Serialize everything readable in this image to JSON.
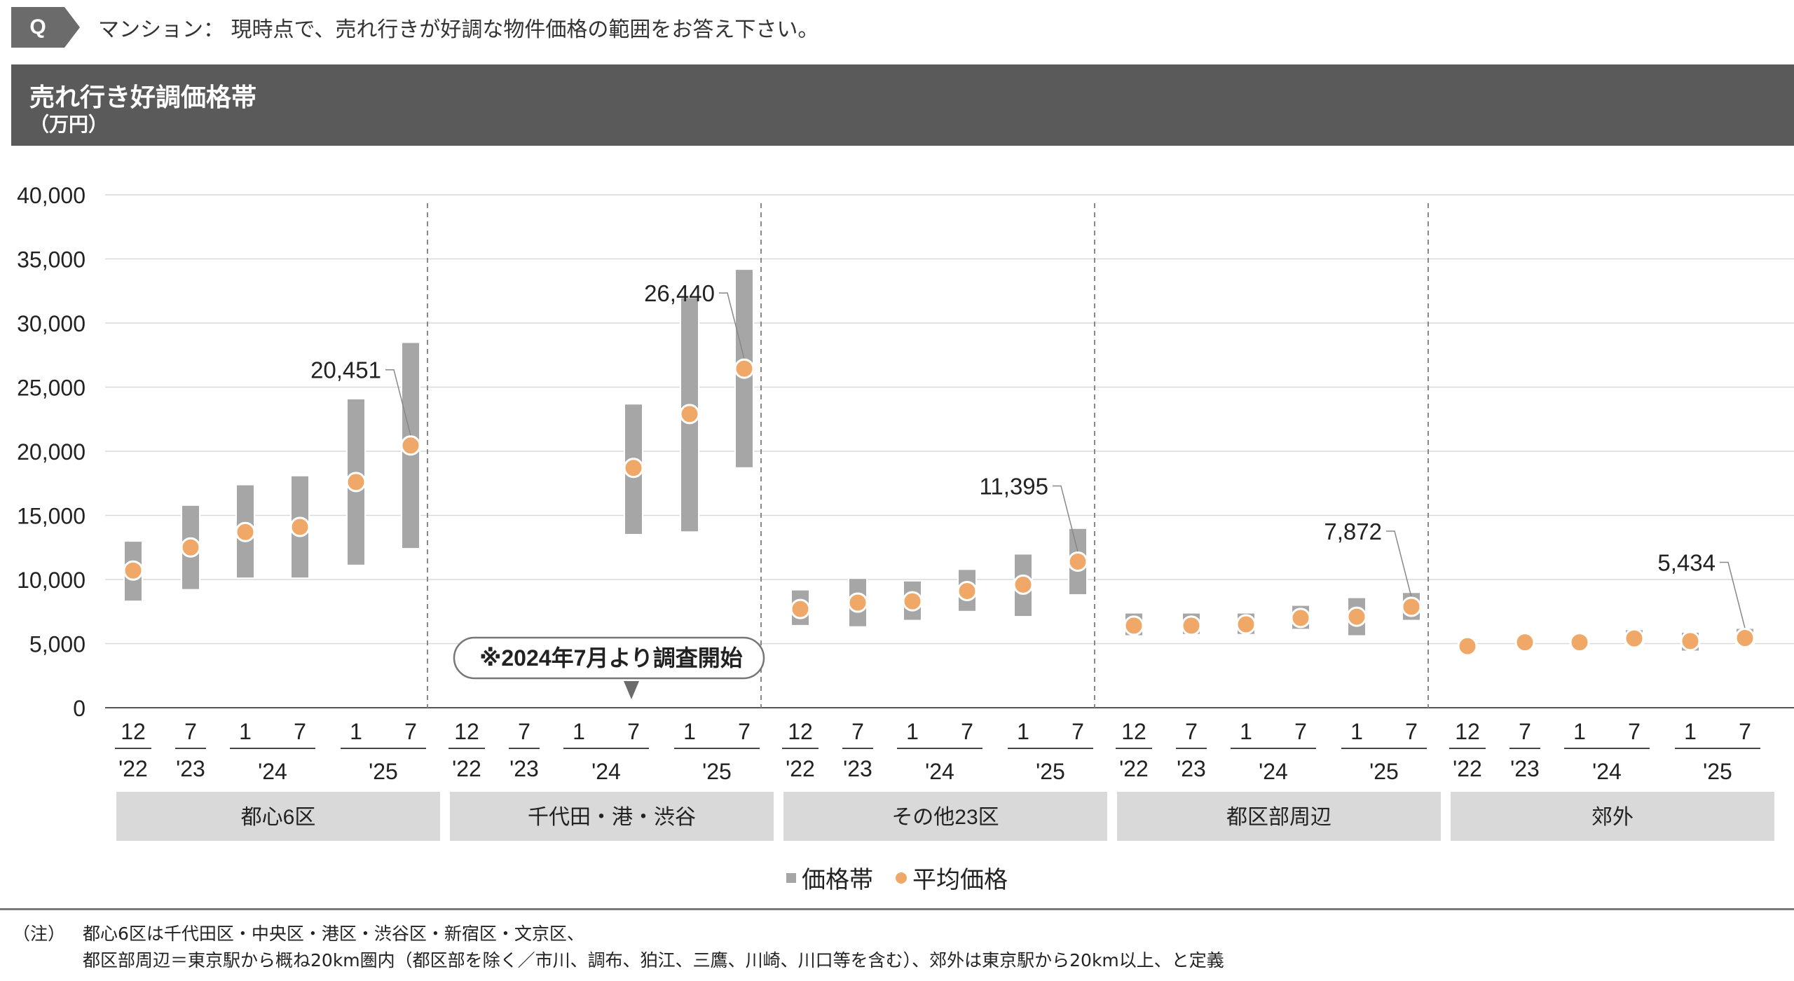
{
  "question": {
    "badge": "Q",
    "text": "マンション：  現時点で、売れ行きが好調な物件価格の範囲をお答え下さい。"
  },
  "title": {
    "main": "売れ行き好調価格帯",
    "unit": "（万円）"
  },
  "colors": {
    "range_bar": "#a6a6a6",
    "average_dot": "#f0a868",
    "group_band": "#d9d9d9",
    "header": "#5a5a5a"
  },
  "callout": "※2024年7月より調査開始",
  "legend": {
    "range_label": "価格帯",
    "average_label": "平均価格"
  },
  "notes": {
    "label": "（注）",
    "line1": "都心6区は千代田区・中央区・港区・渋谷区・新宿区・文京区、",
    "line2": "都区部周辺＝東京駅から概ね20km圏内（都区部を除く／市川、調布、狛江、三鷹、川崎、川口等を含む）、郊外は東京駅から20km以上、と定義"
  },
  "chart_data": {
    "type": "range-dot",
    "ylim": [
      0,
      40000
    ],
    "yticks": [
      "0",
      "5,000",
      "10,000",
      "15,000",
      "20,000",
      "25,000",
      "30,000",
      "35,000",
      "40,000"
    ],
    "x_month_labels": [
      "12",
      "7",
      "1",
      "7",
      "1",
      "7"
    ],
    "x_year_labels": [
      "'22",
      "'23",
      "'24",
      "'25"
    ],
    "groups": [
      {
        "name": "都心6区",
        "high": [
          13000,
          15800,
          17400,
          18100,
          24100,
          28500
        ],
        "low": [
          8300,
          9200,
          10100,
          10100,
          11100,
          12400
        ],
        "average": [
          10700,
          12500,
          13700,
          14100,
          17600,
          20451
        ],
        "labeled_value": "20,451"
      },
      {
        "name": "千代田・港・渋谷",
        "high": [
          null,
          null,
          null,
          23700,
          32000,
          34200
        ],
        "low": [
          null,
          null,
          null,
          13500,
          13700,
          18700
        ],
        "average": [
          null,
          null,
          null,
          18700,
          22900,
          26440
        ],
        "labeled_value": "26,440"
      },
      {
        "name": "その他23区",
        "high": [
          9200,
          10100,
          9900,
          10800,
          12000,
          14000
        ],
        "low": [
          6400,
          6300,
          6800,
          7500,
          7100,
          8800
        ],
        "average": [
          7700,
          8200,
          8300,
          9100,
          9600,
          11395
        ],
        "labeled_value": "11,395"
      },
      {
        "name": "都区部周辺",
        "high": [
          7400,
          7400,
          7400,
          8000,
          8600,
          9000
        ],
        "low": [
          5600,
          5700,
          5700,
          6100,
          5600,
          6800
        ],
        "average": [
          6400,
          6400,
          6500,
          7000,
          7100,
          7872
        ],
        "labeled_value": "7,872"
      },
      {
        "name": "郊外",
        "high": [
          5300,
          5600,
          5600,
          6100,
          5900,
          6200
        ],
        "low": [
          4300,
          4700,
          4700,
          4900,
          4400,
          5000
        ],
        "average": [
          4800,
          5100,
          5100,
          5400,
          5200,
          5434
        ],
        "labeled_value": "5,434"
      }
    ]
  }
}
